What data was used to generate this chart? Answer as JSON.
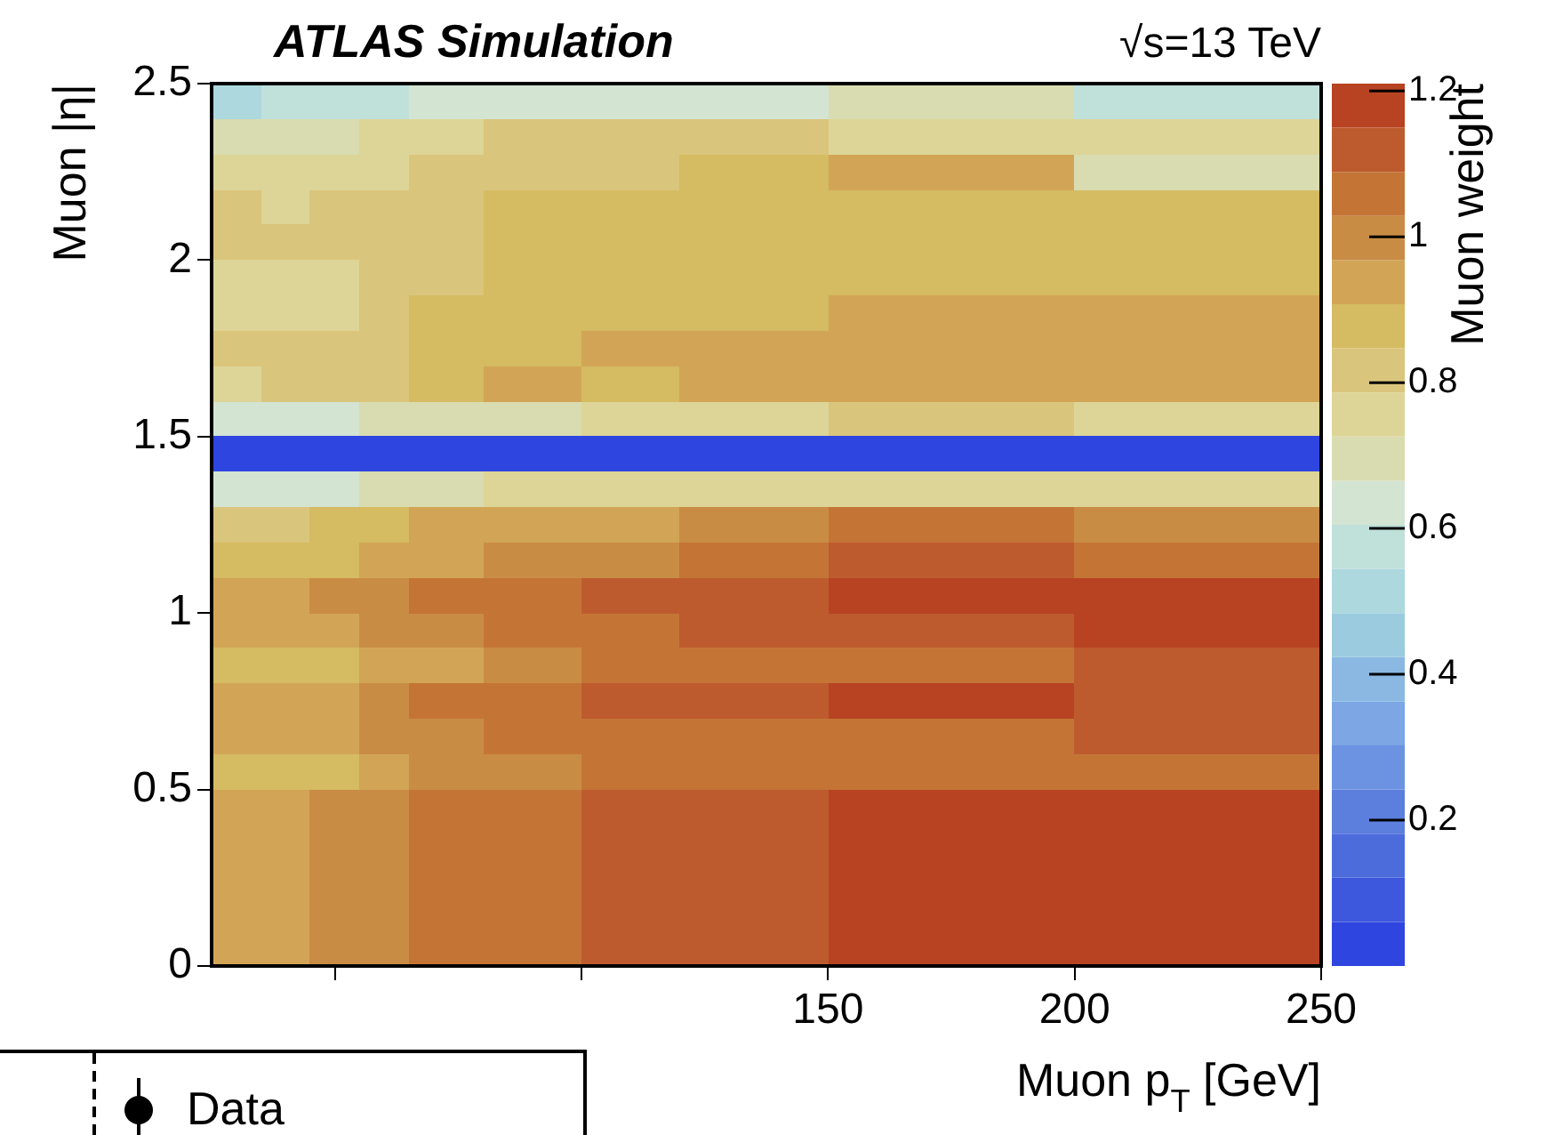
{
  "chart_data": {
    "type": "heatmap",
    "title": "ATLAS Simulation",
    "xlabel": "Muon p$_{T}$ [GeV]",
    "ylabel": "Muon |η|",
    "clabel": "Muon weight",
    "annotations": [
      "√s=13 TeV",
      "Data"
    ],
    "cells": [
      [
        0.51,
        0.51,
        0.57,
        0.57,
        0.57,
        0.57,
        0.57,
        0.57,
        0.64,
        0.64,
        0.64,
        0.64,
        0.64,
        0.64,
        0.64,
        0.64,
        0.64,
        0.64,
        0.64,
        0.64,
        0.64,
        0.64,
        0.64,
        0.64,
        0.64,
        0.7,
        0.7,
        0.7,
        0.7,
        0.7,
        0.7,
        0.7,
        0.7,
        0.7,
        0.7,
        0.57,
        0.57,
        0.57,
        0.57,
        0.57,
        0.57,
        0.57,
        0.57,
        0.57,
        0.57
      ],
      [
        0.7,
        0.7,
        0.7,
        0.7,
        0.7,
        0.7,
        0.76,
        0.76,
        0.76,
        0.76,
        0.76,
        0.82,
        0.82,
        0.82,
        0.82,
        0.82,
        0.82,
        0.82,
        0.82,
        0.82,
        0.82,
        0.82,
        0.82,
        0.82,
        0.82,
        0.76,
        0.76,
        0.76,
        0.76,
        0.76,
        0.76,
        0.76,
        0.76,
        0.76,
        0.76,
        0.76,
        0.76,
        0.76,
        0.76,
        0.76,
        0.76,
        0.76,
        0.76,
        0.76,
        0.76
      ],
      [
        0.76,
        0.76,
        0.76,
        0.76,
        0.76,
        0.76,
        0.76,
        0.76,
        0.82,
        0.82,
        0.82,
        0.82,
        0.82,
        0.82,
        0.82,
        0.82,
        0.82,
        0.82,
        0.82,
        0.88,
        0.88,
        0.88,
        0.88,
        0.88,
        0.88,
        0.94,
        0.94,
        0.94,
        0.94,
        0.94,
        0.94,
        0.94,
        0.94,
        0.94,
        0.94,
        0.7,
        0.7,
        0.7,
        0.7,
        0.7,
        0.7,
        0.7,
        0.7,
        0.7,
        0.7
      ],
      [
        0.82,
        0.82,
        0.76,
        0.76,
        0.82,
        0.82,
        0.82,
        0.82,
        0.82,
        0.82,
        0.82,
        0.88,
        0.88,
        0.88,
        0.88,
        0.88,
        0.88,
        0.88,
        0.88,
        0.88,
        0.88,
        0.88,
        0.88,
        0.88,
        0.88,
        0.88,
        0.88,
        0.88,
        0.88,
        0.88,
        0.88,
        0.88,
        0.88,
        0.88,
        0.88,
        0.88,
        0.88,
        0.88,
        0.88,
        0.88,
        0.88,
        0.88,
        0.88,
        0.88,
        0.88
      ],
      [
        0.82,
        0.82,
        0.82,
        0.82,
        0.82,
        0.82,
        0.82,
        0.82,
        0.82,
        0.82,
        0.82,
        0.88,
        0.88,
        0.88,
        0.88,
        0.88,
        0.88,
        0.88,
        0.88,
        0.88,
        0.88,
        0.88,
        0.88,
        0.88,
        0.88,
        0.88,
        0.88,
        0.88,
        0.88,
        0.88,
        0.88,
        0.88,
        0.88,
        0.88,
        0.88,
        0.88,
        0.88,
        0.88,
        0.88,
        0.88,
        0.88,
        0.88,
        0.88,
        0.88,
        0.88
      ],
      [
        0.76,
        0.76,
        0.76,
        0.76,
        0.76,
        0.76,
        0.82,
        0.82,
        0.82,
        0.82,
        0.82,
        0.88,
        0.88,
        0.88,
        0.88,
        0.88,
        0.88,
        0.88,
        0.88,
        0.88,
        0.88,
        0.88,
        0.88,
        0.88,
        0.88,
        0.88,
        0.88,
        0.88,
        0.88,
        0.88,
        0.88,
        0.88,
        0.88,
        0.88,
        0.88,
        0.88,
        0.88,
        0.88,
        0.88,
        0.88,
        0.88,
        0.88,
        0.88,
        0.88,
        0.88
      ],
      [
        0.76,
        0.76,
        0.76,
        0.76,
        0.76,
        0.76,
        0.82,
        0.82,
        0.88,
        0.88,
        0.88,
        0.88,
        0.88,
        0.88,
        0.88,
        0.88,
        0.88,
        0.88,
        0.88,
        0.88,
        0.88,
        0.88,
        0.88,
        0.88,
        0.88,
        0.94,
        0.94,
        0.94,
        0.94,
        0.94,
        0.94,
        0.94,
        0.94,
        0.94,
        0.94,
        0.94,
        0.94,
        0.94,
        0.94,
        0.94,
        0.94,
        0.94,
        0.94,
        0.94,
        0.94
      ],
      [
        0.82,
        0.82,
        0.82,
        0.82,
        0.82,
        0.82,
        0.82,
        0.82,
        0.88,
        0.88,
        0.88,
        0.88,
        0.88,
        0.88,
        0.88,
        0.94,
        0.94,
        0.94,
        0.94,
        0.94,
        0.94,
        0.94,
        0.94,
        0.94,
        0.94,
        0.94,
        0.94,
        0.94,
        0.94,
        0.94,
        0.94,
        0.94,
        0.94,
        0.94,
        0.94,
        0.94,
        0.94,
        0.94,
        0.94,
        0.94,
        0.94,
        0.94,
        0.94,
        0.94,
        0.94
      ],
      [
        0.76,
        0.76,
        0.82,
        0.82,
        0.82,
        0.82,
        0.82,
        0.82,
        0.88,
        0.88,
        0.88,
        0.94,
        0.94,
        0.94,
        0.94,
        0.88,
        0.88,
        0.88,
        0.88,
        0.94,
        0.94,
        0.94,
        0.94,
        0.94,
        0.94,
        0.94,
        0.94,
        0.94,
        0.94,
        0.94,
        0.94,
        0.94,
        0.94,
        0.94,
        0.94,
        0.94,
        0.94,
        0.94,
        0.94,
        0.94,
        0.94,
        0.94,
        0.94,
        0.94,
        0.94
      ],
      [
        0.64,
        0.64,
        0.64,
        0.64,
        0.64,
        0.64,
        0.7,
        0.7,
        0.7,
        0.7,
        0.7,
        0.7,
        0.7,
        0.7,
        0.7,
        0.76,
        0.76,
        0.76,
        0.76,
        0.76,
        0.76,
        0.76,
        0.76,
        0.76,
        0.76,
        0.82,
        0.82,
        0.82,
        0.82,
        0.82,
        0.82,
        0.82,
        0.82,
        0.82,
        0.82,
        0.76,
        0.76,
        0.76,
        0.76,
        0.76,
        0.76,
        0.76,
        0.76,
        0.76,
        0.76
      ],
      [
        0.03,
        0.03,
        0.03,
        0.03,
        0.03,
        0.03,
        0.03,
        0.03,
        0.03,
        0.03,
        0.03,
        0.03,
        0.03,
        0.03,
        0.03,
        0.03,
        0.03,
        0.03,
        0.03,
        0.03,
        0.03,
        0.03,
        0.03,
        0.03,
        0.03,
        0.03,
        0.03,
        0.03,
        0.03,
        0.03,
        0.03,
        0.03,
        0.03,
        0.03,
        0.03,
        0.03,
        0.03,
        0.03,
        0.03,
        0.03,
        0.03,
        0.03,
        0.03,
        0.03,
        0.03
      ],
      [
        0.64,
        0.64,
        0.64,
        0.64,
        0.64,
        0.64,
        0.7,
        0.7,
        0.7,
        0.7,
        0.7,
        0.76,
        0.76,
        0.76,
        0.76,
        0.76,
        0.76,
        0.76,
        0.76,
        0.76,
        0.76,
        0.76,
        0.76,
        0.76,
        0.76,
        0.76,
        0.76,
        0.76,
        0.76,
        0.76,
        0.76,
        0.76,
        0.76,
        0.76,
        0.76,
        0.76,
        0.76,
        0.76,
        0.76,
        0.76,
        0.76,
        0.76,
        0.76,
        0.76,
        0.76
      ],
      [
        0.82,
        0.82,
        0.82,
        0.82,
        0.88,
        0.88,
        0.88,
        0.88,
        0.94,
        0.94,
        0.94,
        0.94,
        0.94,
        0.94,
        0.94,
        0.94,
        0.94,
        0.94,
        0.94,
        1.0,
        1.0,
        1.0,
        1.0,
        1.0,
        1.0,
        1.06,
        1.06,
        1.06,
        1.06,
        1.06,
        1.06,
        1.06,
        1.06,
        1.06,
        1.06,
        1.0,
        1.0,
        1.0,
        1.0,
        1.0,
        1.0,
        1.0,
        1.0,
        1.0,
        1.0
      ],
      [
        0.88,
        0.88,
        0.88,
        0.88,
        0.88,
        0.88,
        0.94,
        0.94,
        0.94,
        0.94,
        0.94,
        1.0,
        1.0,
        1.0,
        1.0,
        1.0,
        1.0,
        1.0,
        1.0,
        1.06,
        1.06,
        1.06,
        1.06,
        1.06,
        1.06,
        1.12,
        1.12,
        1.12,
        1.12,
        1.12,
        1.12,
        1.12,
        1.12,
        1.12,
        1.12,
        1.06,
        1.06,
        1.06,
        1.06,
        1.06,
        1.06,
        1.06,
        1.06,
        1.06,
        1.06
      ],
      [
        0.94,
        0.94,
        0.94,
        0.94,
        1.0,
        1.0,
        1.0,
        1.0,
        1.06,
        1.06,
        1.06,
        1.06,
        1.06,
        1.06,
        1.06,
        1.12,
        1.12,
        1.12,
        1.12,
        1.12,
        1.12,
        1.12,
        1.12,
        1.12,
        1.12,
        1.18,
        1.18,
        1.18,
        1.18,
        1.18,
        1.18,
        1.18,
        1.18,
        1.18,
        1.18,
        1.18,
        1.18,
        1.18,
        1.18,
        1.18,
        1.18,
        1.18,
        1.18,
        1.18,
        1.18
      ],
      [
        0.94,
        0.94,
        0.94,
        0.94,
        0.94,
        0.94,
        1.0,
        1.0,
        1.0,
        1.0,
        1.0,
        1.06,
        1.06,
        1.06,
        1.06,
        1.06,
        1.06,
        1.06,
        1.06,
        1.12,
        1.12,
        1.12,
        1.12,
        1.12,
        1.12,
        1.12,
        1.12,
        1.12,
        1.12,
        1.12,
        1.12,
        1.12,
        1.12,
        1.12,
        1.12,
        1.18,
        1.18,
        1.18,
        1.18,
        1.18,
        1.18,
        1.18,
        1.18,
        1.18,
        1.18
      ],
      [
        0.88,
        0.88,
        0.88,
        0.88,
        0.88,
        0.88,
        0.94,
        0.94,
        0.94,
        0.94,
        0.94,
        1.0,
        1.0,
        1.0,
        1.0,
        1.06,
        1.06,
        1.06,
        1.06,
        1.06,
        1.06,
        1.06,
        1.06,
        1.06,
        1.06,
        1.06,
        1.06,
        1.06,
        1.06,
        1.06,
        1.06,
        1.06,
        1.06,
        1.06,
        1.06,
        1.12,
        1.12,
        1.12,
        1.12,
        1.12,
        1.12,
        1.12,
        1.12,
        1.12,
        1.12
      ],
      [
        0.94,
        0.94,
        0.94,
        0.94,
        0.94,
        0.94,
        1.0,
        1.0,
        1.06,
        1.06,
        1.06,
        1.06,
        1.06,
        1.06,
        1.06,
        1.12,
        1.12,
        1.12,
        1.12,
        1.12,
        1.12,
        1.12,
        1.12,
        1.12,
        1.12,
        1.18,
        1.18,
        1.18,
        1.18,
        1.18,
        1.18,
        1.18,
        1.18,
        1.18,
        1.18,
        1.12,
        1.12,
        1.12,
        1.12,
        1.12,
        1.12,
        1.12,
        1.12,
        1.12,
        1.12
      ],
      [
        0.94,
        0.94,
        0.94,
        0.94,
        0.94,
        0.94,
        1.0,
        1.0,
        1.0,
        1.0,
        1.0,
        1.06,
        1.06,
        1.06,
        1.06,
        1.06,
        1.06,
        1.06,
        1.06,
        1.06,
        1.06,
        1.06,
        1.06,
        1.06,
        1.06,
        1.06,
        1.06,
        1.06,
        1.06,
        1.06,
        1.06,
        1.06,
        1.06,
        1.06,
        1.06,
        1.12,
        1.12,
        1.12,
        1.12,
        1.12,
        1.12,
        1.12,
        1.12,
        1.12,
        1.12
      ],
      [
        0.88,
        0.88,
        0.88,
        0.88,
        0.88,
        0.88,
        0.94,
        0.94,
        1.0,
        1.0,
        1.0,
        1.0,
        1.0,
        1.0,
        1.0,
        1.06,
        1.06,
        1.06,
        1.06,
        1.06,
        1.06,
        1.06,
        1.06,
        1.06,
        1.06,
        1.06,
        1.06,
        1.06,
        1.06,
        1.06,
        1.06,
        1.06,
        1.06,
        1.06,
        1.06,
        1.06,
        1.06,
        1.06,
        1.06,
        1.06,
        1.06,
        1.06,
        1.06,
        1.06,
        1.06
      ],
      [
        0.94,
        0.94,
        0.94,
        0.94,
        1.0,
        1.0,
        1.0,
        1.0,
        1.06,
        1.06,
        1.06,
        1.06,
        1.06,
        1.06,
        1.06,
        1.12,
        1.12,
        1.12,
        1.12,
        1.12,
        1.12,
        1.12,
        1.12,
        1.12,
        1.12,
        1.18,
        1.18,
        1.18,
        1.18,
        1.18,
        1.18,
        1.18,
        1.18,
        1.18,
        1.18,
        1.18,
        1.18,
        1.18,
        1.18,
        1.18,
        1.18,
        1.18,
        1.18,
        1.18,
        1.18
      ],
      [
        0.94,
        0.94,
        0.94,
        0.94,
        1.0,
        1.0,
        1.0,
        1.0,
        1.06,
        1.06,
        1.06,
        1.06,
        1.06,
        1.06,
        1.06,
        1.12,
        1.12,
        1.12,
        1.12,
        1.12,
        1.12,
        1.12,
        1.12,
        1.12,
        1.12,
        1.18,
        1.18,
        1.18,
        1.18,
        1.18,
        1.18,
        1.18,
        1.18,
        1.18,
        1.18,
        1.18,
        1.18,
        1.18,
        1.18,
        1.18,
        1.18,
        1.18,
        1.18,
        1.18,
        1.18
      ],
      [
        0.94,
        0.94,
        0.94,
        0.94,
        1.0,
        1.0,
        1.0,
        1.0,
        1.06,
        1.06,
        1.06,
        1.06,
        1.06,
        1.06,
        1.06,
        1.12,
        1.12,
        1.12,
        1.12,
        1.12,
        1.12,
        1.12,
        1.12,
        1.12,
        1.12,
        1.18,
        1.18,
        1.18,
        1.18,
        1.18,
        1.18,
        1.18,
        1.18,
        1.18,
        1.18,
        1.18,
        1.18,
        1.18,
        1.18,
        1.18,
        1.18,
        1.18,
        1.18,
        1.18,
        1.18
      ],
      [
        0.94,
        0.94,
        0.94,
        0.94,
        1.0,
        1.0,
        1.0,
        1.0,
        1.06,
        1.06,
        1.06,
        1.06,
        1.06,
        1.06,
        1.06,
        1.12,
        1.12,
        1.12,
        1.12,
        1.12,
        1.12,
        1.12,
        1.12,
        1.12,
        1.12,
        1.18,
        1.18,
        1.18,
        1.18,
        1.18,
        1.18,
        1.18,
        1.18,
        1.18,
        1.18,
        1.18,
        1.18,
        1.18,
        1.18,
        1.18,
        1.18,
        1.18,
        1.18,
        1.18,
        1.18
      ],
      [
        0.94,
        0.94,
        0.94,
        0.94,
        1.0,
        1.0,
        1.0,
        1.0,
        1.06,
        1.06,
        1.06,
        1.06,
        1.06,
        1.06,
        1.06,
        1.12,
        1.12,
        1.12,
        1.12,
        1.12,
        1.12,
        1.12,
        1.12,
        1.12,
        1.12,
        1.18,
        1.18,
        1.18,
        1.18,
        1.18,
        1.18,
        1.18,
        1.18,
        1.18,
        1.18,
        1.18,
        1.18,
        1.18,
        1.18,
        1.18,
        1.18,
        1.18,
        1.18,
        1.18,
        1.18
      ]
    ],
    "xlim": [
      25,
      250
    ],
    "ylim": [
      0,
      2.5
    ],
    "xticks": [
      {
        "value": 50,
        "label": null
      },
      {
        "value": 100,
        "label": null
      },
      150,
      200,
      250
    ],
    "yticks": [
      0,
      0.5,
      1,
      1.5,
      2,
      2.5
    ],
    "clim": [
      0,
      1.21
    ],
    "cticks": [
      0.2,
      0.4,
      0.6,
      0.8,
      1,
      1.2
    ]
  }
}
